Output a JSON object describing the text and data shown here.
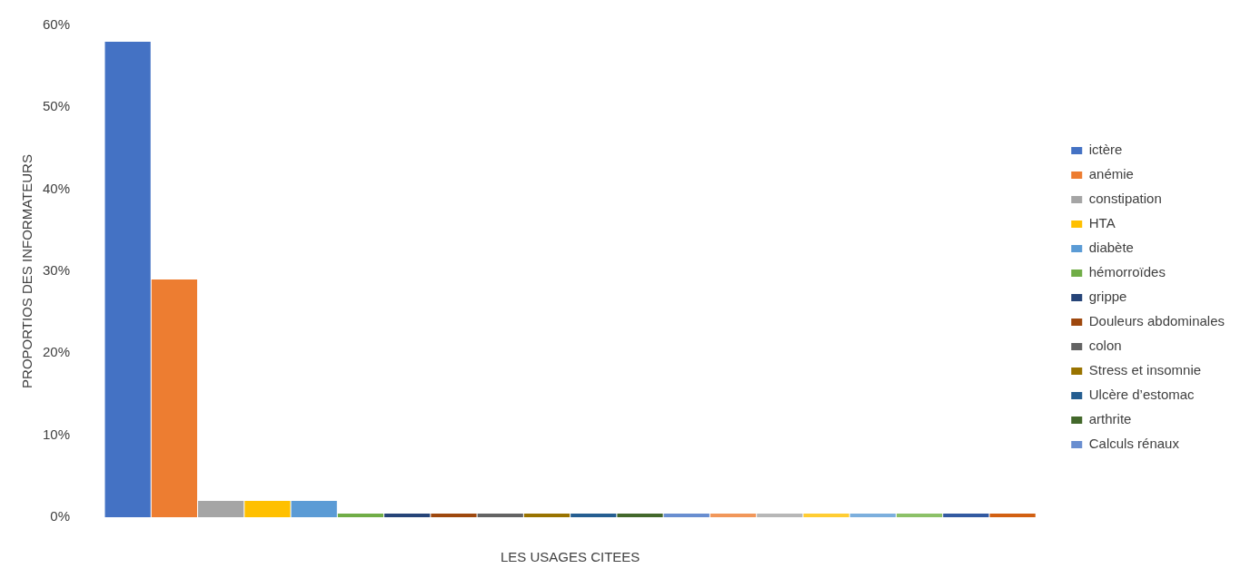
{
  "chart_data": {
    "type": "bar",
    "xlabel": "LES USAGES CITEES",
    "ylabel": "PROPORTIOS DES INFORMATEURS",
    "categories": [
      null
    ],
    "series": [
      {
        "name": "ictère",
        "color": "#4472c4",
        "values": [
          58
        ]
      },
      {
        "name": "anémie",
        "color": "#ed7d31",
        "values": [
          29
        ]
      },
      {
        "name": "constipation",
        "color": "#a5a5a5",
        "values": [
          2
        ]
      },
      {
        "name": "HTA",
        "color": "#ffc000",
        "values": [
          2
        ]
      },
      {
        "name": "diabète",
        "color": "#5b9bd5",
        "values": [
          2
        ]
      },
      {
        "name": "hémorroïdes",
        "color": "#70ad47",
        "values": [
          0
        ]
      },
      {
        "name": "grippe",
        "color": "#264478",
        "values": [
          0
        ]
      },
      {
        "name": "Douleurs abdominales",
        "color": "#9e480e",
        "values": [
          0
        ]
      },
      {
        "name": "colon",
        "color": "#636363",
        "values": [
          0
        ]
      },
      {
        "name": "Stress et insomnie",
        "color": "#997300",
        "values": [
          0
        ]
      },
      {
        "name": "Ulcère d’estomac",
        "color": "#255e91",
        "values": [
          0
        ]
      },
      {
        "name": "arthrite",
        "color": "#43682b",
        "values": [
          0
        ]
      },
      {
        "name": "Calculs rénaux",
        "color": "#698ed0",
        "values": [
          0
        ]
      },
      {
        "color": "#f1975a",
        "values": [
          0
        ]
      },
      {
        "color": "#b7b7b7",
        "values": [
          0
        ]
      },
      {
        "color": "#ffcd33",
        "values": [
          0
        ]
      },
      {
        "color": "#7cafdd",
        "values": [
          0
        ]
      },
      {
        "color": "#8cc168",
        "values": [
          0
        ]
      },
      {
        "color": "#335aa1",
        "values": [
          0
        ]
      },
      {
        "color": "#d26012",
        "values": [
          0
        ]
      }
    ],
    "ylim": [
      0,
      60
    ],
    "yticks": [
      {
        "value": 0,
        "label": "0%"
      },
      {
        "value": 10,
        "label": "10%"
      },
      {
        "value": 20,
        "label": "20%"
      },
      {
        "value": 30,
        "label": "30%"
      },
      {
        "value": 40,
        "label": "40%"
      },
      {
        "value": 50,
        "label": "50%"
      },
      {
        "value": 60,
        "label": "60%"
      }
    ],
    "grid": false,
    "legend": "right"
  }
}
